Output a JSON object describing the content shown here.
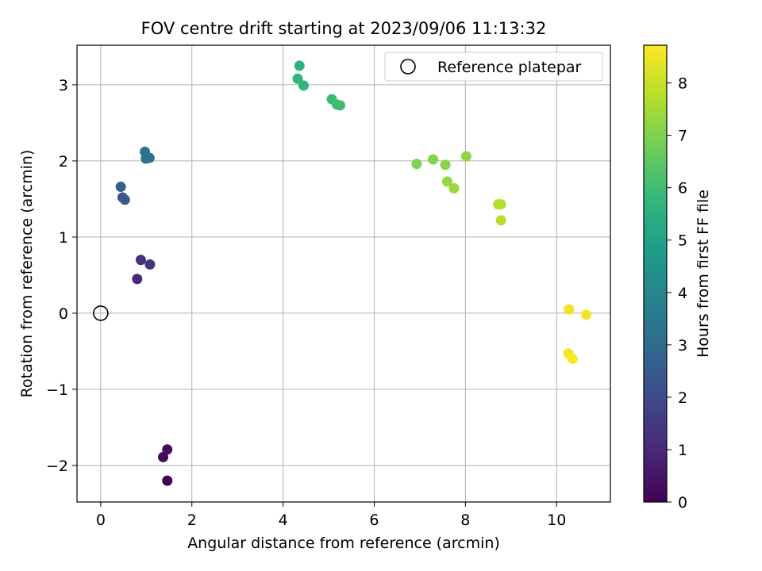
{
  "chart_data": {
    "type": "scatter",
    "title": "FOV centre drift starting at 2023/09/06 11:13:32",
    "xlabel": "Angular distance from reference (arcmin)",
    "ylabel": "Rotation from reference (arcmin)",
    "xlim": [
      -0.52,
      11.18
    ],
    "ylim": [
      -2.48,
      3.52
    ],
    "xticks": [
      0,
      2,
      4,
      6,
      8,
      10
    ],
    "yticks": [
      -2,
      -1,
      0,
      1,
      2,
      3
    ],
    "xtick_labels": [
      "0",
      "2",
      "4",
      "6",
      "8",
      "10"
    ],
    "ytick_labels": [
      "−2",
      "−1",
      "0",
      "1",
      "2",
      "3"
    ],
    "grid": true,
    "legend": {
      "position": "top-right",
      "entries": [
        "Reference platepar"
      ]
    },
    "reference_point": {
      "x": 0,
      "y": 0,
      "label": "Reference platepar"
    },
    "colorbar": {
      "label": "Hours from first FF file",
      "min": 0,
      "max": 8.72,
      "ticks": [
        0,
        1,
        2,
        3,
        4,
        5,
        6,
        7,
        8
      ],
      "tick_labels": [
        "0",
        "1",
        "2",
        "3",
        "4",
        "5",
        "6",
        "7",
        "8"
      ],
      "colormap": "viridis",
      "stops": [
        "#440154",
        "#482878",
        "#3e4989",
        "#31688e",
        "#26828e",
        "#1f9e89",
        "#35b779",
        "#6ece58",
        "#b5de2b",
        "#fde725"
      ]
    },
    "points": [
      {
        "x": 1.46,
        "y": -2.2,
        "t": 0.0
      },
      {
        "x": 1.37,
        "y": -1.89,
        "t": 0.2
      },
      {
        "x": 1.46,
        "y": -1.79,
        "t": 0.3
      },
      {
        "x": 0.8,
        "y": 0.45,
        "t": 1.0
      },
      {
        "x": 0.88,
        "y": 0.7,
        "t": 1.2
      },
      {
        "x": 1.08,
        "y": 0.64,
        "t": 1.35
      },
      {
        "x": 0.44,
        "y": 1.66,
        "t": 2.6
      },
      {
        "x": 0.48,
        "y": 1.52,
        "t": 2.4
      },
      {
        "x": 0.53,
        "y": 1.49,
        "t": 2.45
      },
      {
        "x": 0.97,
        "y": 2.12,
        "t": 3.2
      },
      {
        "x": 0.99,
        "y": 2.03,
        "t": 3.3
      },
      {
        "x": 1.07,
        "y": 2.04,
        "t": 3.4
      },
      {
        "x": 4.36,
        "y": 3.25,
        "t": 5.6
      },
      {
        "x": 4.32,
        "y": 3.08,
        "t": 5.65
      },
      {
        "x": 4.45,
        "y": 2.99,
        "t": 5.7
      },
      {
        "x": 5.07,
        "y": 2.81,
        "t": 5.9
      },
      {
        "x": 5.18,
        "y": 2.74,
        "t": 5.95
      },
      {
        "x": 5.25,
        "y": 2.73,
        "t": 6.0
      },
      {
        "x": 6.93,
        "y": 1.96,
        "t": 7.05
      },
      {
        "x": 7.29,
        "y": 2.02,
        "t": 7.1
      },
      {
        "x": 7.56,
        "y": 1.95,
        "t": 7.15
      },
      {
        "x": 7.6,
        "y": 1.73,
        "t": 7.3
      },
      {
        "x": 7.75,
        "y": 1.64,
        "t": 7.35
      },
      {
        "x": 8.02,
        "y": 2.06,
        "t": 7.2
      },
      {
        "x": 8.72,
        "y": 1.43,
        "t": 7.7
      },
      {
        "x": 8.78,
        "y": 1.43,
        "t": 7.75
      },
      {
        "x": 8.78,
        "y": 1.22,
        "t": 7.8
      },
      {
        "x": 10.27,
        "y": 0.05,
        "t": 8.5
      },
      {
        "x": 10.65,
        "y": -0.02,
        "t": 8.55
      },
      {
        "x": 10.26,
        "y": -0.53,
        "t": 8.6
      },
      {
        "x": 10.35,
        "y": -0.6,
        "t": 8.7
      }
    ]
  }
}
